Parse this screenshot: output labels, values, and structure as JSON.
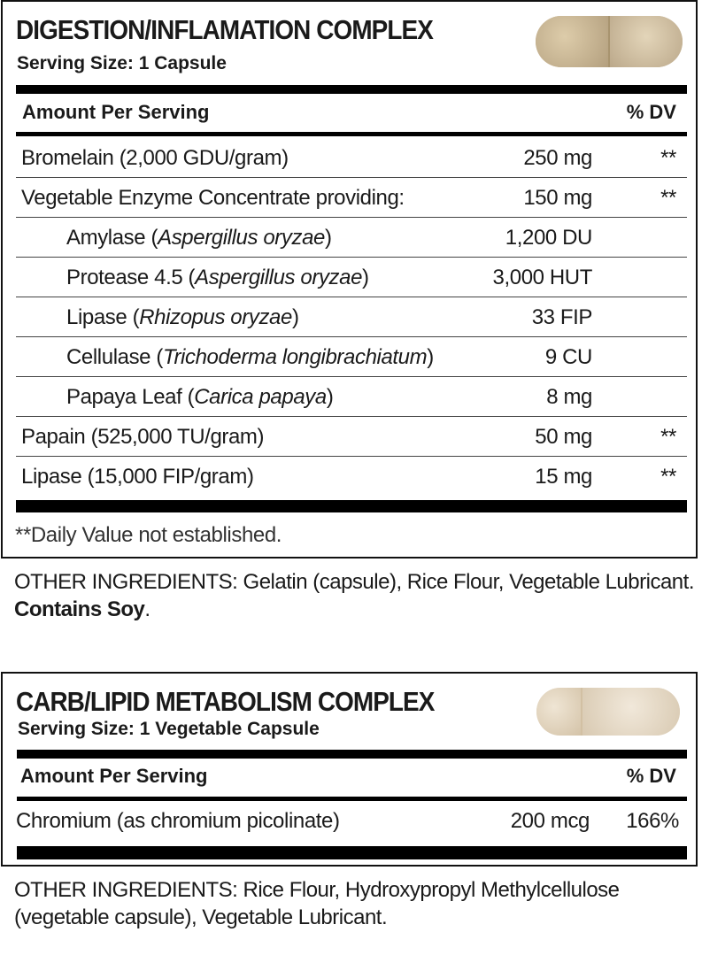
{
  "panel1": {
    "title": "DIGESTION/INFLAMATION COMPLEX",
    "serving_size": "Serving Size: 1 Capsule",
    "capsule_icon": "capsule-image",
    "header": {
      "amount": "Amount Per Serving",
      "dv": "% DV"
    },
    "rows": [
      {
        "name": "Bromelain (2,000 GDU/gram)",
        "amount": "250 mg",
        "dv": "**"
      },
      {
        "name": "Vegetable Enzyme Concentrate providing:",
        "amount": "150 mg",
        "dv": "**"
      },
      {
        "name": "Amylase (",
        "species": "Aspergillus oryzae",
        "close": ")",
        "amount": "1,200 DU",
        "dv": ""
      },
      {
        "name": "Protease 4.5 (",
        "species": "Aspergillus oryzae",
        "close": ")",
        "amount": "3,000 HUT",
        "dv": ""
      },
      {
        "name": "Lipase (",
        "species": "Rhizopus oryzae",
        "close": ")",
        "amount": "33 FIP",
        "dv": ""
      },
      {
        "name": "Cellulase (",
        "species": "Trichoderma longibrachiatum",
        "close": ")",
        "amount": "9 CU",
        "dv": ""
      },
      {
        "name": "Papaya Leaf (",
        "species": "Carica papaya",
        "close": ")",
        "amount": "8 mg",
        "dv": ""
      },
      {
        "name": "Papain (525,000 TU/gram)",
        "amount": "50 mg",
        "dv": "**"
      },
      {
        "name": "Lipase (15,000 FIP/gram)",
        "amount": "15 mg",
        "dv": "**"
      }
    ],
    "footnote": "**Daily Value not established."
  },
  "other1": {
    "text": "OTHER INGREDIENTS: Gelatin (capsule), Rice Flour, Vegetable Lubricant. ",
    "bold": "Contains Soy",
    "end": "."
  },
  "panel2": {
    "title": "CARB/LIPID METABOLISM COMPLEX",
    "serving_size": "Serving Size: 1 Vegetable Capsule",
    "capsule_icon": "capsule-image",
    "header": {
      "amount": "Amount Per Serving",
      "dv": "% DV"
    },
    "rows": [
      {
        "name": "Chromium (as chromium picolinate)",
        "amount": "200 mcg",
        "dv": "166%"
      }
    ]
  },
  "other2": {
    "text": "OTHER INGREDIENTS: Rice Flour, Hydroxypropyl Methylcellulose (vegetable capsule), Vegetable Lubricant."
  }
}
